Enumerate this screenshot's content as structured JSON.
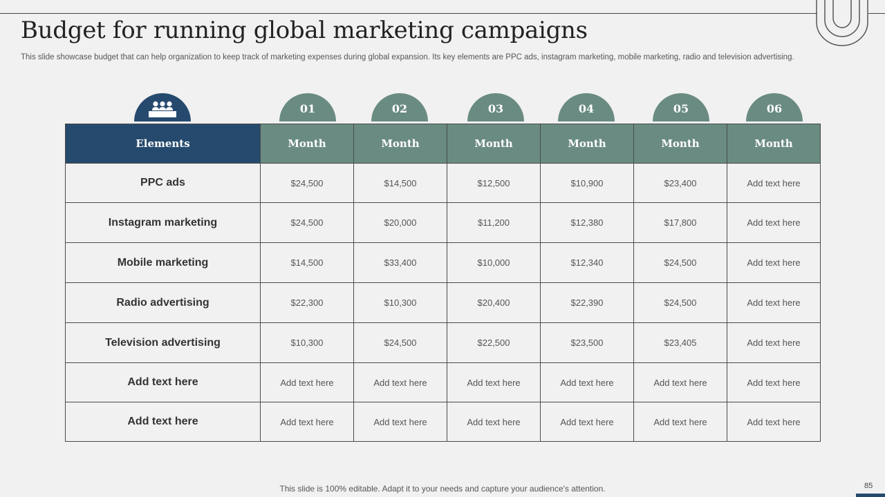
{
  "slide": {
    "title": "Budget for running global marketing campaigns",
    "subtitle": "This slide showcase budget that can help organization to keep track of marketing expenses during global expansion. Its key elements are PPC ads, instagram marketing, mobile marketing, radio and television advertising.",
    "footer": "This slide is 100% editable. Adapt it to your needs and capture your audience's attention.",
    "page_number": "85"
  },
  "tabs": [
    "01",
    "02",
    "03",
    "04",
    "05",
    "06"
  ],
  "table": {
    "headers": [
      "Elements",
      "Month",
      "Month",
      "Month",
      "Month",
      "Month",
      "Month"
    ],
    "rows": [
      {
        "label": "PPC ads",
        "cells": [
          "$24,500",
          "$14,500",
          "$12,500",
          "$10,900",
          "$23,400",
          "Add text here"
        ]
      },
      {
        "label": "Instagram marketing",
        "cells": [
          "$24,500",
          "$20,000",
          "$11,200",
          "$12,380",
          "$17,800",
          "Add text here"
        ]
      },
      {
        "label": "Mobile marketing",
        "cells": [
          "$14,500",
          "$33,400",
          "$10,000",
          "$12,340",
          "$24,500",
          "Add text here"
        ]
      },
      {
        "label": "Radio advertising",
        "cells": [
          "$22,300",
          "$10,300",
          "$20,400",
          "$22,390",
          "$24,500",
          "Add text here"
        ]
      },
      {
        "label": "Television advertising",
        "cells": [
          "$10,300",
          "$24,500",
          "$22,500",
          "$23,500",
          "$23,405",
          "Add text here"
        ]
      },
      {
        "label": "Add text here",
        "cells": [
          "Add text here",
          "Add text here",
          "Add text here",
          "Add text here",
          "Add text here",
          "Add text here"
        ]
      },
      {
        "label": "Add text here",
        "cells": [
          "Add text here",
          "Add text here",
          "Add text here",
          "Add text here",
          "Add text here",
          "Add text here"
        ]
      }
    ]
  },
  "colors": {
    "navy": "#264a6e",
    "sage": "#6a8b82",
    "background": "#f1f1f1"
  },
  "icons": {
    "elements_tab": "group-people-icon",
    "corner_decoration": "concentric-arch-icon"
  }
}
